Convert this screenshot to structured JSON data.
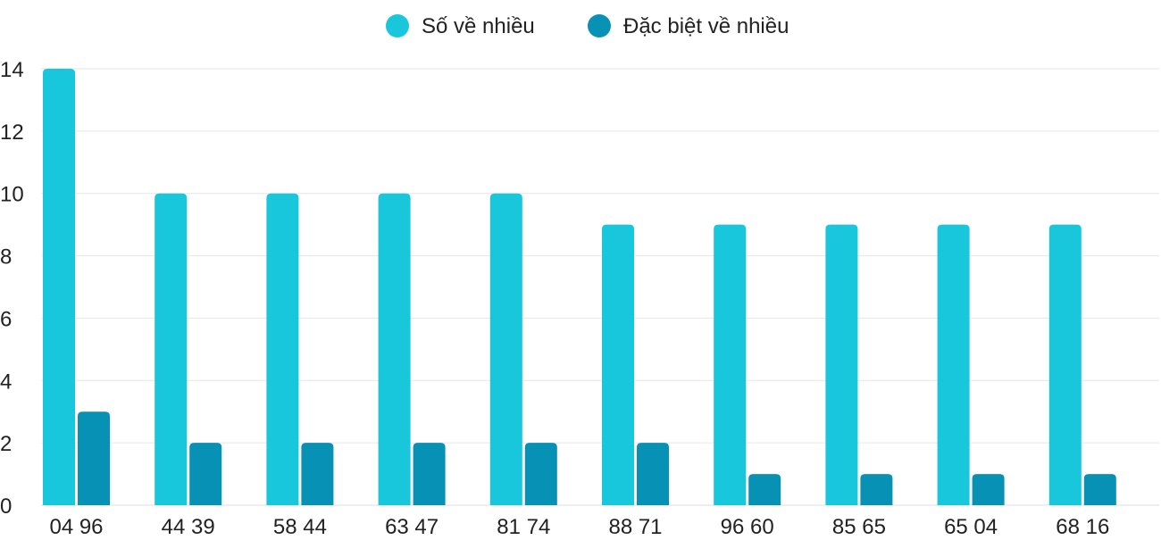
{
  "chart_data": {
    "type": "bar",
    "title": "",
    "xlabel": "",
    "ylabel": "",
    "categories": [
      "04 96",
      "44 39",
      "58 44",
      "63 47",
      "81 74",
      "88 71",
      "96 60",
      "85 65",
      "65 04",
      "68 16"
    ],
    "series": [
      {
        "name": "Số về nhiều",
        "color": "#19c7dc",
        "values": [
          14,
          10,
          10,
          10,
          10,
          9,
          9,
          9,
          9,
          9
        ]
      },
      {
        "name": "Đặc biệt về nhiều",
        "color": "#0791b4",
        "values": [
          3,
          2,
          2,
          2,
          2,
          2,
          1,
          1,
          1,
          1
        ]
      }
    ],
    "ylim": [
      0,
      14
    ],
    "yticks": [
      "0",
      "2",
      "4",
      "6",
      "8",
      "10",
      "12",
      "14"
    ],
    "grid": true,
    "legend_position": "top-center"
  }
}
